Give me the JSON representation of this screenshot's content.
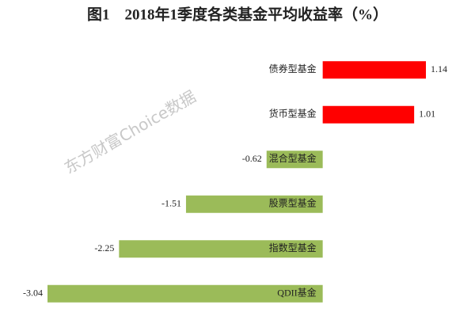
{
  "chart_data": {
    "type": "barh",
    "title": "图1　2018年1季度各类基金平均收益率（%）",
    "watermark": "东方财富Choice数据",
    "categories": [
      "债券型基金",
      "货币型基金",
      "混合型基金",
      "股票型基金",
      "指数型基金",
      "QDII基金"
    ],
    "values": [
      1.14,
      1.01,
      -0.62,
      -1.51,
      -2.25,
      -3.04
    ],
    "colors": [
      "#ff0000",
      "#ff0000",
      "#9bbb59",
      "#9bbb59",
      "#9bbb59",
      "#9bbb59"
    ]
  }
}
